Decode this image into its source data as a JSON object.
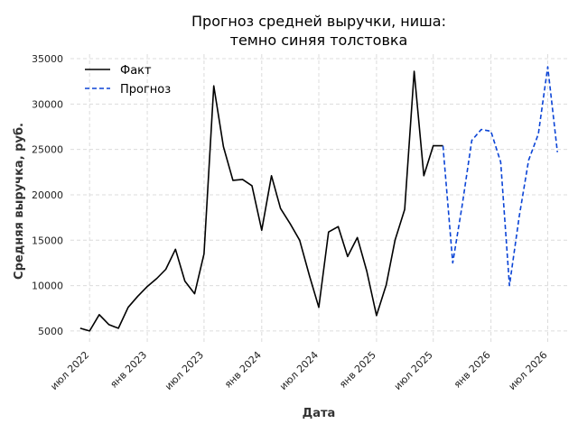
{
  "chart_data": {
    "type": "line",
    "title_lines": [
      "Прогноз средней выручки, ниша:",
      "темно синяя толстовка"
    ],
    "xlabel": "Дата",
    "ylabel": "Средняя выручка, руб.",
    "x_tick_labels": [
      "июл 2022",
      "янв 2023",
      "июл 2023",
      "янв 2024",
      "июл 2024",
      "янв 2025",
      "июл 2025",
      "янв 2026",
      "июл 2026"
    ],
    "x_tick_dates": [
      "2022-07-01",
      "2023-01-01",
      "2023-07-01",
      "2024-01-01",
      "2024-07-01",
      "2025-01-01",
      "2025-07-01",
      "2026-01-01",
      "2026-07-01"
    ],
    "y_ticks": [
      5000,
      10000,
      15000,
      20000,
      25000,
      30000,
      35000
    ],
    "xlim": [
      "2022-05-01",
      "2026-09-01"
    ],
    "ylim": [
      3500,
      35500
    ],
    "grid": true,
    "legend_position": "top-left",
    "series": [
      {
        "name": "Факт",
        "color": "#000000",
        "style": "solid",
        "x": [
          "2022-06-01",
          "2022-07-01",
          "2022-08-01",
          "2022-09-01",
          "2022-10-01",
          "2022-11-01",
          "2022-12-01",
          "2023-01-01",
          "2023-02-01",
          "2023-03-01",
          "2023-04-01",
          "2023-05-01",
          "2023-06-01",
          "2023-07-01",
          "2023-08-01",
          "2023-09-01",
          "2023-10-01",
          "2023-11-01",
          "2023-12-01",
          "2024-01-01",
          "2024-02-01",
          "2024-03-01",
          "2024-04-01",
          "2024-05-01",
          "2024-06-01",
          "2024-07-01",
          "2024-08-01",
          "2024-09-01",
          "2024-10-01",
          "2024-11-01",
          "2024-12-01",
          "2025-01-01",
          "2025-02-01",
          "2025-03-01",
          "2025-04-01",
          "2025-05-01",
          "2025-06-01",
          "2025-07-01",
          "2025-08-01"
        ],
        "values": [
          5300,
          5000,
          6800,
          5700,
          5300,
          7600,
          8800,
          9900,
          10800,
          11800,
          14000,
          10500,
          9100,
          13500,
          32000,
          25300,
          21600,
          21700,
          21000,
          16100,
          22100,
          18500,
          16800,
          15000,
          11100,
          7600,
          15900,
          16500,
          13200,
          15300,
          11600,
          6700,
          10100,
          15000,
          18400,
          33600,
          22100,
          25400,
          null
        ]
      },
      {
        "name": "Прогноз",
        "color": "#0b44d6",
        "style": "dashed",
        "x": [
          "2025-08-01",
          "2025-09-01",
          "2025-10-01",
          "2025-11-01",
          "2025-12-01",
          "2026-01-01",
          "2026-02-01",
          "2026-03-01",
          "2026-04-01",
          "2026-05-01",
          "2026-06-01",
          "2026-07-01",
          "2026-08-01"
        ],
        "values": [
          25400,
          12500,
          18800,
          26000,
          27200,
          27000,
          23600,
          10000,
          17600,
          23800,
          26700,
          34100,
          24700
        ]
      }
    ]
  }
}
